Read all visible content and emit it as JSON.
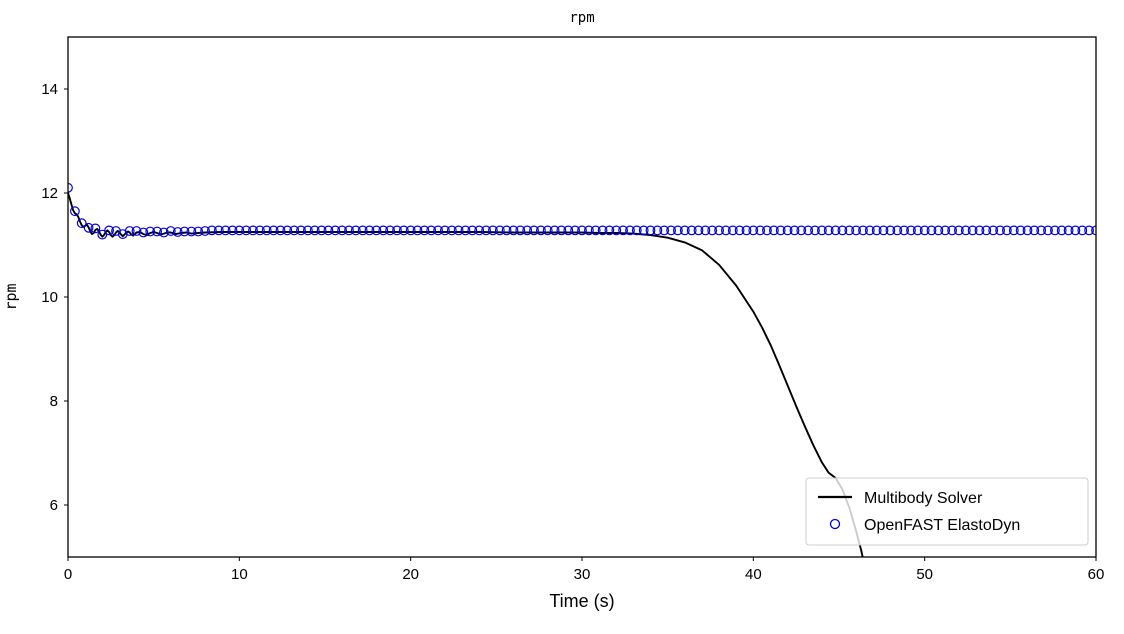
{
  "figure": {
    "title": "rpm",
    "xlabel": "Time (s)",
    "ylabel": "rpm"
  },
  "chart_data": {
    "type": "line",
    "title": "rpm",
    "xlabel": "Time (s)",
    "ylabel": "rpm",
    "xlim": [
      0,
      60
    ],
    "ylim": [
      5,
      15
    ],
    "xticks": [
      0,
      10,
      20,
      30,
      40,
      50,
      60
    ],
    "yticks": [
      6,
      8,
      10,
      12,
      14
    ],
    "grid": false,
    "legend": {
      "location": "lower right",
      "frame_opacity": 0.8,
      "entries": [
        "Multibody Solver",
        "OpenFAST ElastoDyn"
      ]
    },
    "series": [
      {
        "name": "Multibody Solver",
        "style": "line",
        "color": "#000000",
        "linewidth": 1.9,
        "points": [
          [
            0,
            12.0
          ],
          [
            0.1,
            11.9
          ],
          [
            0.2,
            11.78
          ],
          [
            0.3,
            11.67
          ],
          [
            0.4,
            11.61
          ],
          [
            0.5,
            11.59
          ],
          [
            0.6,
            11.54
          ],
          [
            0.7,
            11.45
          ],
          [
            0.8,
            11.38
          ],
          [
            0.9,
            11.35
          ],
          [
            1.0,
            11.37
          ],
          [
            1.1,
            11.39
          ],
          [
            1.2,
            11.34
          ],
          [
            1.3,
            11.26
          ],
          [
            1.4,
            11.21
          ],
          [
            1.5,
            11.23
          ],
          [
            1.6,
            11.29
          ],
          [
            1.7,
            11.31
          ],
          [
            1.8,
            11.27
          ],
          [
            1.9,
            11.2
          ],
          [
            2.0,
            11.16
          ],
          [
            2.1,
            11.19
          ],
          [
            2.2,
            11.25
          ],
          [
            2.3,
            11.28
          ],
          [
            2.4,
            11.25
          ],
          [
            2.5,
            11.19
          ],
          [
            2.6,
            11.16
          ],
          [
            2.7,
            11.19
          ],
          [
            2.8,
            11.24
          ],
          [
            2.9,
            11.27
          ],
          [
            3.0,
            11.25
          ],
          [
            3.1,
            11.2
          ],
          [
            3.2,
            11.17
          ],
          [
            3.3,
            11.2
          ],
          [
            3.4,
            11.24
          ],
          [
            3.5,
            11.26
          ],
          [
            3.6,
            11.24
          ],
          [
            3.7,
            11.2
          ],
          [
            3.8,
            11.18
          ],
          [
            3.9,
            11.21
          ],
          [
            4.0,
            11.24
          ],
          [
            4.2,
            11.25
          ],
          [
            4.4,
            11.21
          ],
          [
            4.6,
            11.19
          ],
          [
            4.8,
            11.23
          ],
          [
            5.0,
            11.25
          ],
          [
            5.2,
            11.23
          ],
          [
            5.4,
            11.2
          ],
          [
            5.6,
            11.22
          ],
          [
            5.8,
            11.24
          ],
          [
            6.0,
            11.24
          ],
          [
            6.3,
            11.21
          ],
          [
            6.6,
            11.23
          ],
          [
            6.9,
            11.24
          ],
          [
            7.2,
            11.22
          ],
          [
            7.6,
            11.23
          ],
          [
            8,
            11.24
          ],
          [
            9,
            11.25
          ],
          [
            10,
            11.25
          ],
          [
            12,
            11.25
          ],
          [
            14,
            11.25
          ],
          [
            16,
            11.25
          ],
          [
            18,
            11.25
          ],
          [
            20,
            11.25
          ],
          [
            22,
            11.25
          ],
          [
            24,
            11.25
          ],
          [
            26,
            11.24
          ],
          [
            28,
            11.24
          ],
          [
            30,
            11.24
          ],
          [
            31,
            11.23
          ],
          [
            32,
            11.23
          ],
          [
            33,
            11.22
          ],
          [
            34,
            11.19
          ],
          [
            35,
            11.14
          ],
          [
            36,
            11.05
          ],
          [
            37,
            10.9
          ],
          [
            38,
            10.62
          ],
          [
            39,
            10.22
          ],
          [
            40,
            9.72
          ],
          [
            40.5,
            9.42
          ],
          [
            41,
            9.08
          ],
          [
            41.5,
            8.7
          ],
          [
            42,
            8.3
          ],
          [
            42.5,
            7.9
          ],
          [
            43,
            7.52
          ],
          [
            43.5,
            7.15
          ],
          [
            44,
            6.82
          ],
          [
            44.4,
            6.62
          ],
          [
            44.8,
            6.52
          ],
          [
            45.2,
            6.3
          ],
          [
            45.6,
            5.95
          ],
          [
            46,
            5.5
          ],
          [
            46.3,
            5.12
          ],
          [
            46.45,
            4.9
          ]
        ]
      },
      {
        "name": "OpenFAST ElastoDyn",
        "style": "scatter",
        "marker": "open-circle",
        "color": "#0000dd",
        "marker_radius": 4.3,
        "transient_points": [
          [
            0,
            12.1
          ],
          [
            0.4,
            11.65
          ],
          [
            0.8,
            11.42
          ],
          [
            1.2,
            11.33
          ],
          [
            1.6,
            11.32
          ],
          [
            2.0,
            11.2
          ],
          [
            2.4,
            11.28
          ],
          [
            2.8,
            11.27
          ],
          [
            3.2,
            11.21
          ],
          [
            3.6,
            11.27
          ],
          [
            4.0,
            11.27
          ],
          [
            4.4,
            11.24
          ],
          [
            4.8,
            11.26
          ],
          [
            5.2,
            11.26
          ],
          [
            5.6,
            11.24
          ],
          [
            6.0,
            11.27
          ],
          [
            6.4,
            11.25
          ],
          [
            6.8,
            11.26
          ],
          [
            7.2,
            11.26
          ],
          [
            7.6,
            11.26
          ],
          [
            8.0,
            11.27
          ]
        ],
        "steady": {
          "t_start": 8.4,
          "t_end": 60,
          "dt": 0.4,
          "value": 11.28
        }
      }
    ]
  }
}
